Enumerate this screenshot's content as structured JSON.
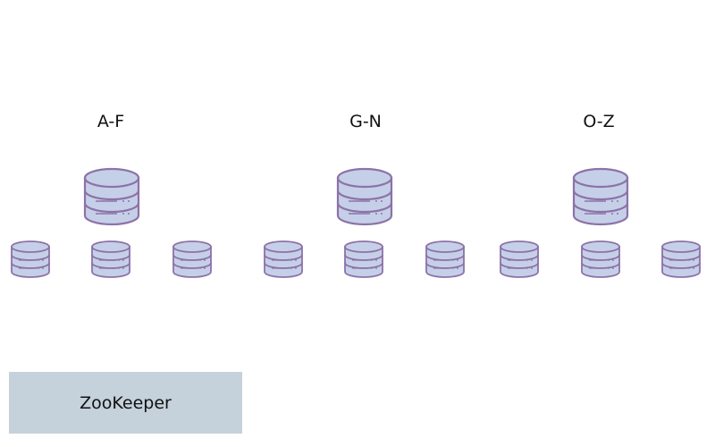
{
  "diagram": {
    "shards": [
      {
        "range": "A-F"
      },
      {
        "range": "G-N"
      },
      {
        "range": "O-Z"
      }
    ],
    "replicas_per_shard": 3,
    "coordinator": {
      "label": "ZooKeeper"
    },
    "colors": {
      "db_fill": "#c5d0e8",
      "db_stroke": "#8d72a8",
      "coordinator_fill": "#c5d1db",
      "text": "#111111"
    },
    "icons": {
      "primary": "database-icon",
      "replica": "database-icon"
    }
  }
}
